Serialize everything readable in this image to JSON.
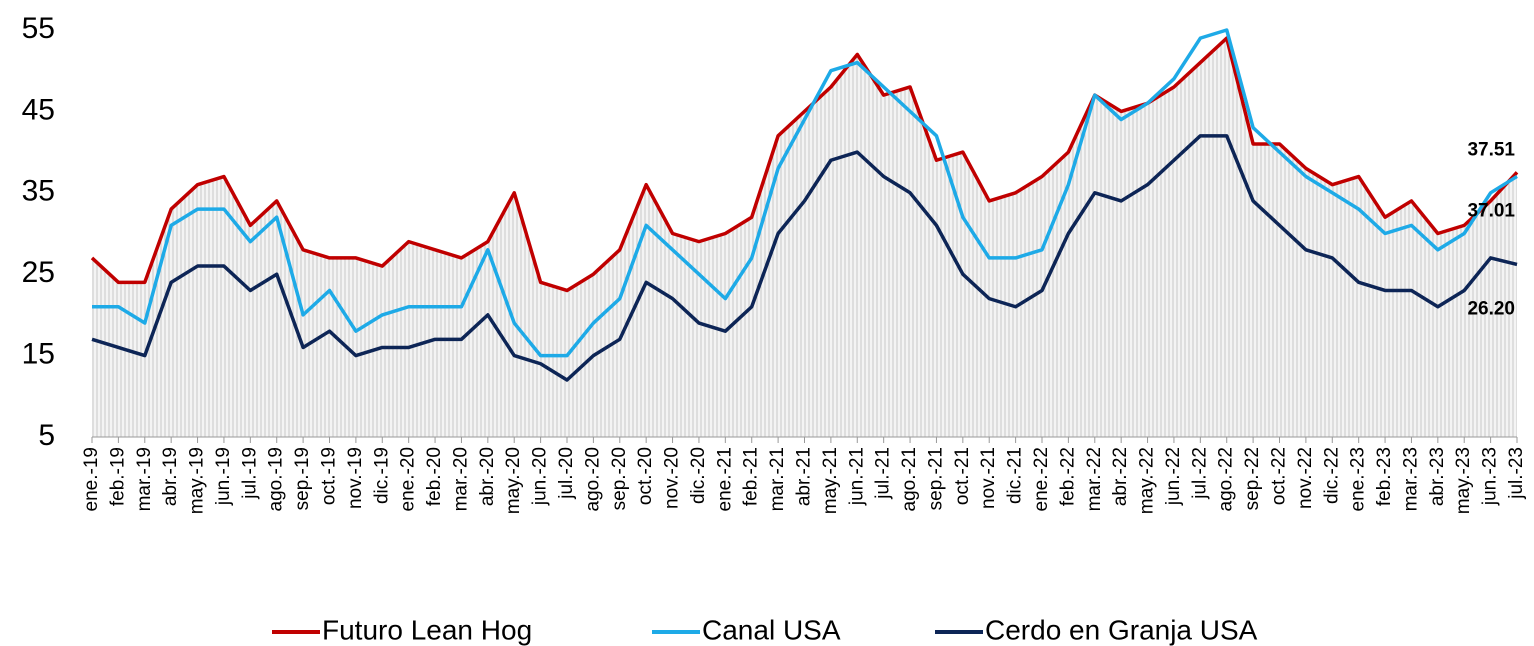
{
  "chart_data": {
    "type": "line",
    "categories": [
      "ene.-19",
      "feb.-19",
      "mar.-19",
      "abr.-19",
      "may.-19",
      "jun.-19",
      "jul.-19",
      "ago.-19",
      "sep.-19",
      "oct.-19",
      "nov.-19",
      "dic.-19",
      "ene.-20",
      "feb.-20",
      "mar.-20",
      "abr.-20",
      "may.-20",
      "jun.-20",
      "jul.-20",
      "ago.-20",
      "sep.-20",
      "oct.-20",
      "nov.-20",
      "dic.-20",
      "ene.-21",
      "feb.-21",
      "mar.-21",
      "abr.-21",
      "may.-21",
      "jun.-21",
      "jul.-21",
      "ago.-21",
      "sep.-21",
      "oct.-21",
      "nov.-21",
      "dic.-21",
      "ene.-22",
      "feb.-22",
      "mar.-22",
      "abr.-22",
      "may.-22",
      "jun.-22",
      "jul.-22",
      "ago.-22",
      "sep.-22",
      "oct.-22",
      "nov.-22",
      "dic.-22",
      "ene.-23",
      "feb.-23",
      "mar.-23",
      "abr.-23",
      "may.-23",
      "jun.-23",
      "jul.-23"
    ],
    "series": [
      {
        "name": "Futuro Lean Hog",
        "color": "#c00000",
        "values": [
          27,
          24,
          24,
          33,
          36,
          37,
          31,
          34,
          28,
          27,
          27,
          26,
          29,
          28,
          27,
          29,
          35,
          24,
          23,
          25,
          28,
          36,
          30,
          29,
          30,
          32,
          42,
          45,
          48,
          52,
          47,
          48,
          39,
          40,
          34,
          35,
          37,
          40,
          47,
          45,
          46,
          48,
          51,
          54,
          41,
          41,
          38,
          36,
          37,
          32,
          34,
          30,
          31,
          34,
          37.51
        ],
        "value_labels": [
          null,
          null,
          null,
          null,
          null,
          null,
          null,
          null,
          null,
          null,
          null,
          null,
          null,
          null,
          null,
          null,
          null,
          null,
          null,
          null,
          null,
          null,
          null,
          null,
          null,
          null,
          null,
          null,
          null,
          null,
          null,
          null,
          null,
          null,
          null,
          null,
          null,
          null,
          null,
          null,
          null,
          null,
          null,
          null,
          null,
          null,
          null,
          null,
          null,
          null,
          null,
          null,
          null,
          null,
          "37.51"
        ]
      },
      {
        "name": "Canal USA",
        "color": "#1eaae7",
        "values": [
          21,
          21,
          19,
          31,
          33,
          33,
          29,
          32,
          20,
          23,
          18,
          20,
          21,
          21,
          21,
          28,
          19,
          15,
          15,
          19,
          22,
          31,
          28,
          25,
          22,
          27,
          38,
          44,
          50,
          51,
          48,
          45,
          42,
          32,
          27,
          27,
          28,
          36,
          47,
          44,
          46,
          49,
          54,
          55,
          43,
          40,
          37,
          35,
          33,
          30,
          31,
          28,
          30,
          35,
          37.01
        ],
        "value_labels": [
          null,
          null,
          null,
          null,
          null,
          null,
          null,
          null,
          null,
          null,
          null,
          null,
          null,
          null,
          null,
          null,
          null,
          null,
          null,
          null,
          null,
          null,
          null,
          null,
          null,
          null,
          null,
          null,
          null,
          null,
          null,
          null,
          null,
          null,
          null,
          null,
          null,
          null,
          null,
          null,
          null,
          null,
          null,
          null,
          null,
          null,
          null,
          null,
          null,
          null,
          null,
          null,
          null,
          null,
          "37.01"
        ]
      },
      {
        "name": "Cerdo en Granja USA",
        "color": "#0d2556",
        "values": [
          17,
          16,
          15,
          24,
          26,
          26,
          23,
          25,
          16,
          18,
          15,
          16,
          16,
          17,
          17,
          20,
          15,
          14,
          12,
          15,
          17,
          24,
          22,
          19,
          18,
          21,
          30,
          34,
          39,
          40,
          37,
          35,
          31,
          25,
          22,
          21,
          23,
          30,
          35,
          34,
          36,
          39,
          42,
          42,
          34,
          31,
          28,
          27,
          24,
          23,
          23,
          21,
          23,
          27,
          26.2
        ],
        "value_labels": [
          null,
          null,
          null,
          null,
          null,
          null,
          null,
          null,
          null,
          null,
          null,
          null,
          null,
          null,
          null,
          null,
          null,
          null,
          null,
          null,
          null,
          null,
          null,
          null,
          null,
          null,
          null,
          null,
          null,
          null,
          null,
          null,
          null,
          null,
          null,
          null,
          null,
          null,
          null,
          null,
          null,
          null,
          null,
          null,
          null,
          null,
          null,
          null,
          null,
          null,
          null,
          null,
          null,
          null,
          "26.20"
        ]
      }
    ],
    "ylim": [
      5,
      55
    ],
    "yticks": [
      5,
      15,
      25,
      35,
      45,
      55
    ],
    "legend": "bottom"
  }
}
